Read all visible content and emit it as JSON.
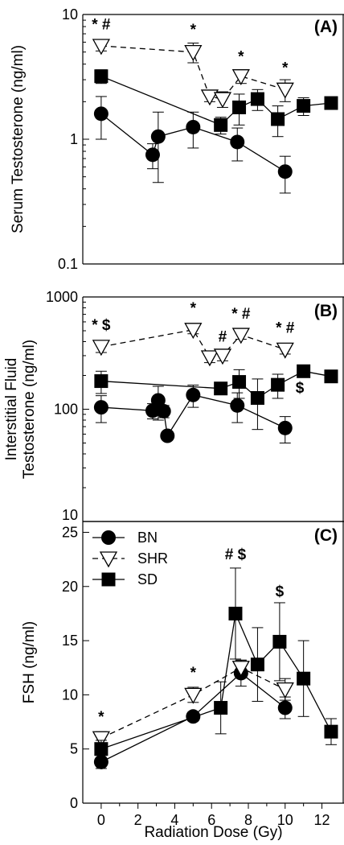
{
  "figure": {
    "xlabel": "Radiation Dose (Gy)",
    "xticks": [
      "0",
      "2",
      "4",
      "6",
      "8",
      "10",
      "12"
    ]
  },
  "chart_data": [
    {
      "type": "line",
      "panel": "(A)",
      "ylabel": "Serum Testosterone (ng/ml)",
      "yscale": "log",
      "ylim": [
        0.1,
        10
      ],
      "yticks": [
        "0.1",
        "1",
        "10"
      ],
      "xlim": [
        -1,
        13.2
      ],
      "series": [
        {
          "name": "BN",
          "marker": "circle",
          "dash": "solid",
          "x": [
            0,
            2.8,
            3.1,
            5,
            7.4,
            10
          ],
          "y": [
            1.6,
            0.75,
            1.05,
            1.25,
            0.95,
            0.55
          ],
          "err": [
            0.6,
            0.17,
            0.6,
            0.4,
            0.28,
            0.18
          ]
        },
        {
          "name": "SHR",
          "marker": "triangle-down",
          "dash": "dashed",
          "x": [
            0,
            5,
            5.9,
            6.6,
            7.6,
            10
          ],
          "y": [
            5.6,
            5.0,
            2.2,
            2.1,
            3.2,
            2.5
          ],
          "err": [
            0.5,
            0.9,
            0.2,
            0.3,
            0.4,
            0.5
          ]
        },
        {
          "name": "SD",
          "marker": "square",
          "dash": "solid",
          "x": [
            0,
            6.5,
            7.5,
            8.5,
            9.6,
            11,
            12.5
          ],
          "y": [
            3.2,
            1.3,
            1.8,
            2.1,
            1.45,
            1.85,
            1.95
          ],
          "err": [
            0.4,
            0.2,
            0.5,
            0.4,
            0.4,
            0.3,
            0.2
          ]
        }
      ],
      "annotations": [
        {
          "x": 0,
          "y": 7.6,
          "text": "* #"
        },
        {
          "x": 5,
          "y": 6.9,
          "text": "*"
        },
        {
          "x": 7.6,
          "y": 4.2,
          "text": "*"
        },
        {
          "x": 10,
          "y": 3.4,
          "text": "*"
        }
      ]
    },
    {
      "type": "line",
      "panel": "(B)",
      "ylabel": [
        "Interstitial Fluid",
        "Testosterone (ng/ml)"
      ],
      "yscale": "log",
      "ylim": [
        10,
        1000
      ],
      "yticks": [
        "10",
        "100",
        "1000"
      ],
      "xlim": [
        -1,
        13.2
      ],
      "series": [
        {
          "name": "BN",
          "marker": "circle",
          "dash": "solid",
          "x": [
            0,
            2.8,
            3.1,
            3.4,
            3.6,
            5,
            7.4,
            10
          ],
          "y": [
            104,
            97,
            120,
            96,
            58,
            134,
            108,
            68
          ],
          "err": [
            28,
            15,
            40,
            12,
            0,
            30,
            32,
            18
          ]
        },
        {
          "name": "SHR",
          "marker": "triangle-down",
          "dash": "dashed",
          "x": [
            0,
            5,
            5.9,
            6.6,
            7.6,
            10
          ],
          "y": [
            360,
            510,
            290,
            300,
            460,
            340
          ],
          "err": [
            40,
            40,
            30,
            30,
            40,
            30
          ]
        },
        {
          "name": "SD",
          "marker": "square",
          "dash": "solid",
          "x": [
            0,
            6.5,
            7.5,
            8.5,
            9.6,
            11,
            12.5
          ],
          "y": [
            178,
            153,
            175,
            126,
            165,
            218,
            196
          ],
          "err": [
            40,
            15,
            50,
            60,
            40,
            15,
            15
          ]
        }
      ],
      "annotations": [
        {
          "x": 0,
          "y": 510,
          "text": "* $"
        },
        {
          "x": 5,
          "y": 720,
          "text": "*"
        },
        {
          "x": 6.6,
          "y": 400,
          "text": "#"
        },
        {
          "x": 7.6,
          "y": 640,
          "text": "* #"
        },
        {
          "x": 10,
          "y": 480,
          "text": "* #"
        },
        {
          "x": 10.8,
          "y": 140,
          "text": "$"
        }
      ]
    },
    {
      "type": "line",
      "panel": "(C)",
      "ylabel": "FSH (ng/ml)",
      "yscale": "linear",
      "ylim": [
        0,
        26
      ],
      "yticks": [
        "0",
        "5",
        "10",
        "15",
        "20",
        "25"
      ],
      "xlim": [
        -1,
        13.2
      ],
      "series": [
        {
          "name": "BN",
          "marker": "circle",
          "dash": "solid",
          "x": [
            0,
            5,
            7.6,
            10
          ],
          "y": [
            3.8,
            8.0,
            12.0,
            8.8
          ],
          "err": [
            0.6,
            0.4,
            1.2,
            1.0
          ]
        },
        {
          "name": "SHR",
          "marker": "triangle-down",
          "dash": "dashed",
          "x": [
            0,
            5,
            7.6,
            10
          ],
          "y": [
            6.0,
            10.0,
            12.5,
            10.5
          ],
          "err": [
            0.6,
            0.7,
            0.7,
            1.0
          ]
        },
        {
          "name": "SD",
          "marker": "square",
          "dash": "solid",
          "x": [
            0,
            6.5,
            7.3,
            8.5,
            9.7,
            11,
            12.5
          ],
          "y": [
            5.0,
            8.8,
            17.5,
            12.8,
            14.9,
            11.5,
            6.6
          ],
          "err": [
            0.8,
            2.4,
            4.2,
            3.4,
            3.6,
            3.5,
            1.2
          ]
        }
      ],
      "annotations": [
        {
          "x": 0,
          "y": 7.5,
          "text": "*"
        },
        {
          "x": 5,
          "y": 11.6,
          "text": "*"
        },
        {
          "x": 7.3,
          "y": 22.5,
          "text": "# $"
        },
        {
          "x": 9.7,
          "y": 19.1,
          "text": "$"
        }
      ],
      "legend": {
        "placement": "top-left",
        "entries": [
          "BN",
          "SHR",
          "SD"
        ]
      }
    }
  ]
}
